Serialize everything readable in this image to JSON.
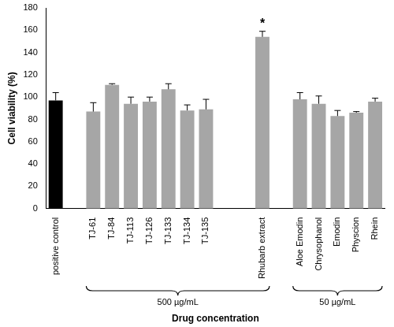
{
  "chart_data": {
    "type": "bar",
    "y_label": "Cell viability (%)",
    "x_label": "Drug concentration",
    "categories": [
      "positive control",
      null,
      "TJ-61",
      "TJ-84",
      "TJ-113",
      "TJ-126",
      "TJ-133",
      "TJ-134",
      "TJ-135",
      null,
      null,
      "Rhubarb extract",
      null,
      "Aloe Emodin",
      "Chrysophanol",
      "Emodin",
      "Physcion",
      "Rhein"
    ],
    "values": [
      97,
      null,
      87,
      111,
      94,
      96,
      107,
      88,
      89,
      null,
      null,
      154,
      null,
      98,
      94,
      83,
      86,
      96
    ],
    "errors": [
      7,
      null,
      8,
      1,
      6,
      4,
      5,
      5,
      9,
      null,
      null,
      5,
      null,
      6,
      7,
      5,
      1,
      3
    ],
    "colors": [
      "#000000",
      null,
      "#a6a6a6",
      "#a6a6a6",
      "#a6a6a6",
      "#a6a6a6",
      "#a6a6a6",
      "#a6a6a6",
      "#a6a6a6",
      null,
      null,
      "#a6a6a6",
      null,
      "#a6a6a6",
      "#a6a6a6",
      "#a6a6a6",
      "#a6a6a6",
      "#a6a6a6"
    ],
    "ylim": [
      0,
      180
    ],
    "yticks": [
      0,
      20,
      40,
      60,
      80,
      100,
      120,
      140,
      160,
      180
    ],
    "grid": false,
    "annotations": [
      {
        "text": "*",
        "category": "Rhubarb extract"
      }
    ],
    "groups": [
      {
        "label": "500 µg/mL",
        "from": "TJ-61",
        "to": "Rhubarb extract"
      },
      {
        "label": "50 µg/mL",
        "from": "Aloe Emodin",
        "to": "Rhein"
      }
    ]
  }
}
